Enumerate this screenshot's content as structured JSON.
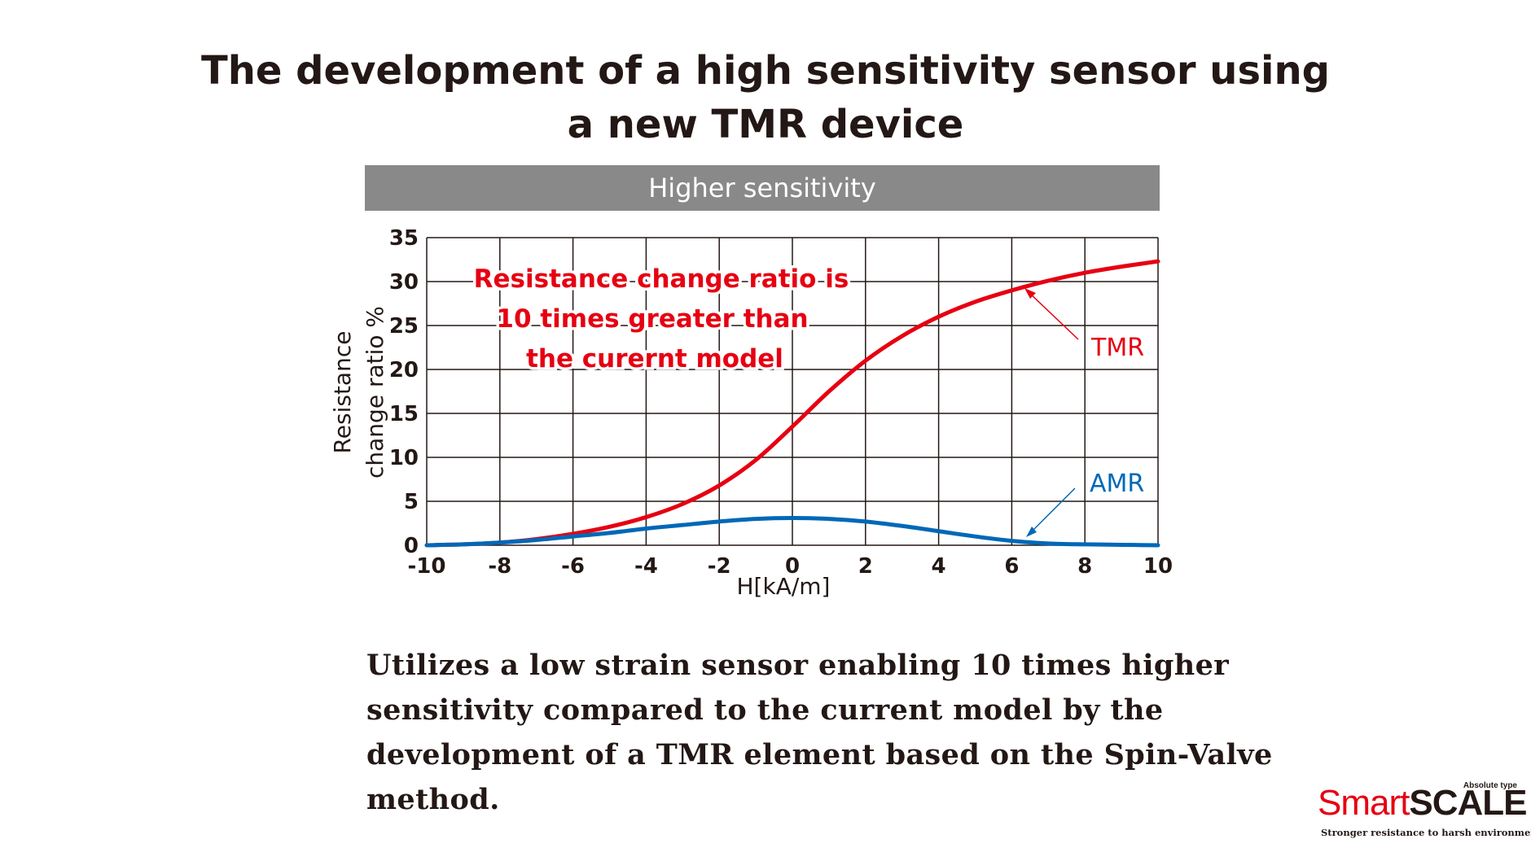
{
  "title": {
    "line1": "The development of a high sensitivity sensor using",
    "line2": "a new TMR device"
  },
  "banner": "Higher sensitivity",
  "description": [
    "Utilizes a low strain sensor enabling 10 times higher",
    "sensitivity compared to the current model by the",
    "development of a TMR element based on the Spin-Valve",
    "method."
  ],
  "logo": {
    "tag": "Absolute type",
    "brand_light": "Smart",
    "brand_bold": "SCALE",
    "subtitle": "Stronger resistance to harsh environment"
  },
  "colors": {
    "tmr": "#e60012",
    "amr": "#0068b7",
    "grid": "#231815",
    "banner": "#898989"
  },
  "chart_data": {
    "type": "line",
    "xlabel": "H[kA/m]",
    "ylabel_line1": "Resistance",
    "ylabel_line2": "change ratio %",
    "xlim": [
      -10,
      10
    ],
    "ylim": [
      0,
      35
    ],
    "xticks": [
      -10,
      -8,
      -6,
      -4,
      -2,
      0,
      2,
      4,
      6,
      8,
      10
    ],
    "yticks": [
      0,
      5,
      10,
      15,
      20,
      25,
      30,
      35
    ],
    "grid": true,
    "x": [
      -10,
      -9,
      -8,
      -7,
      -6,
      -5,
      -4,
      -3,
      -2,
      -1,
      0,
      1,
      2,
      3,
      4,
      5,
      6,
      7,
      8,
      9,
      10
    ],
    "series": [
      {
        "name": "TMR",
        "color": "#e60012",
        "values": [
          0,
          0.1,
          0.3,
          0.7,
          1.3,
          2.1,
          3.2,
          4.7,
          6.8,
          9.7,
          13.5,
          17.5,
          21.0,
          23.8,
          26.0,
          27.7,
          29.0,
          30.1,
          31.0,
          31.7,
          32.3
        ]
      },
      {
        "name": "AMR",
        "color": "#0068b7",
        "values": [
          0,
          0.1,
          0.3,
          0.6,
          1.0,
          1.4,
          1.9,
          2.3,
          2.7,
          3.0,
          3.1,
          3.0,
          2.7,
          2.2,
          1.6,
          1.0,
          0.5,
          0.2,
          0.1,
          0.05,
          0
        ]
      }
    ],
    "annotation_lines": [
      "Resistance change ratio is",
      "10 times greater than",
      "the curernt model"
    ],
    "labels": {
      "tmr": "TMR",
      "amr": "AMR"
    }
  }
}
